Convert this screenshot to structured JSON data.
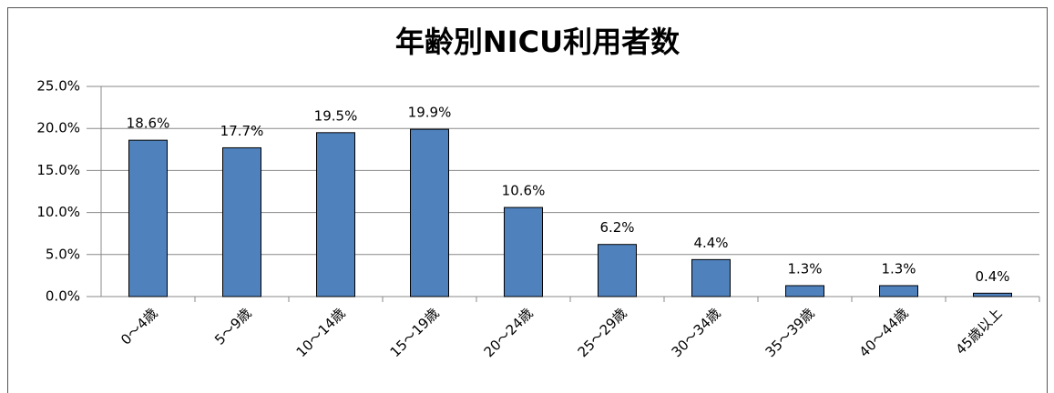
{
  "chart_data": {
    "type": "bar",
    "title": "年齢別NICU利用者数",
    "categories": [
      "0～4歳",
      "5～9歳",
      "10～14歳",
      "15～19歳",
      "20～24歳",
      "25～29歳",
      "30～34歳",
      "35～39歳",
      "40～44歳",
      "45歳以上"
    ],
    "values": [
      18.6,
      17.7,
      19.5,
      19.9,
      10.6,
      6.2,
      4.4,
      1.3,
      1.3,
      0.4
    ],
    "value_labels": [
      "18.6%",
      "17.7%",
      "19.5%",
      "19.9%",
      "10.6%",
      "6.2%",
      "4.4%",
      "1.3%",
      "1.3%",
      "0.4%"
    ],
    "color": "#4f81bd",
    "ylim": [
      0,
      25
    ],
    "yticks": [
      {
        "value": 0,
        "label": "0.0%"
      },
      {
        "value": 5,
        "label": "5.0%"
      },
      {
        "value": 10,
        "label": "10.0%"
      },
      {
        "value": 15,
        "label": "15.0%"
      },
      {
        "value": 20,
        "label": "20.0%"
      },
      {
        "value": 25,
        "label": "25.0%"
      }
    ],
    "grid": true
  }
}
